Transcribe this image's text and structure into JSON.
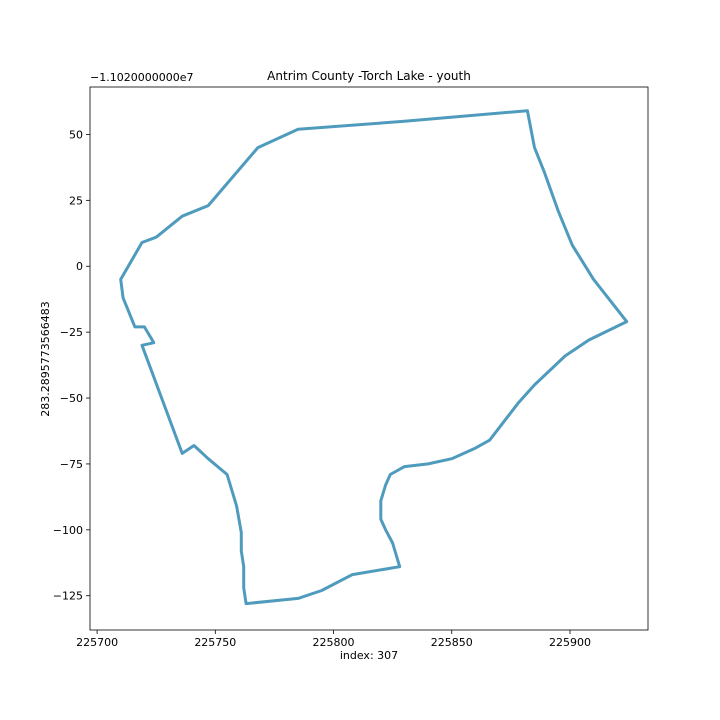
{
  "chart_data": {
    "type": "line",
    "title": "Antrim County -Torch Lake - youth",
    "xlabel": "index: 307",
    "ylabel": "283.2895773566483",
    "y_offset_label": "−1.1020000000e7",
    "xlim": [
      225697,
      225933
    ],
    "ylim": [
      -138,
      68
    ],
    "x_ticks": [
      225700,
      225750,
      225800,
      225850,
      225900
    ],
    "x_tick_labels": [
      "225700",
      "225750",
      "225800",
      "225850",
      "225900"
    ],
    "y_ticks": [
      50,
      25,
      0,
      -25,
      -50,
      -75,
      -100,
      -125
    ],
    "y_tick_labels": [
      "50",
      "25",
      "0",
      "−25",
      "−50",
      "−75",
      "−100",
      "−125"
    ],
    "grid": false,
    "line_color": "#4f9bbd",
    "series": [
      {
        "x": [
          225882,
          225885,
          225889,
          225895,
          225901,
          225910,
          225924,
          225908,
          225898,
          225885,
          225878,
          225866,
          225860,
          225850,
          225840,
          225830,
          225824,
          225822,
          225820,
          225820,
          225822,
          225825,
          225828,
          225808,
          225795,
          225785,
          225763,
          225762,
          225762,
          225761,
          225761,
          225759,
          225755,
          225747,
          225741,
          225736,
          225719,
          225724,
          225720,
          225716,
          225711,
          225710,
          225719,
          225725,
          225736,
          225747,
          225768,
          225785,
          225830,
          225882
        ],
        "y": [
          59,
          45,
          36,
          21,
          8,
          -5,
          -21,
          -28,
          -34,
          -45,
          -52,
          -66,
          -69,
          -73,
          -75,
          -76,
          -79,
          -83,
          -89,
          -96,
          -100,
          -105,
          -114,
          -117,
          -123,
          -126,
          -128,
          -122,
          -114,
          -108,
          -101,
          -91,
          -79,
          -73,
          -68,
          -71,
          -30,
          -29,
          -23,
          -23,
          -12,
          -5,
          9,
          11,
          19,
          23,
          45,
          52,
          55,
          59
        ]
      }
    ]
  }
}
